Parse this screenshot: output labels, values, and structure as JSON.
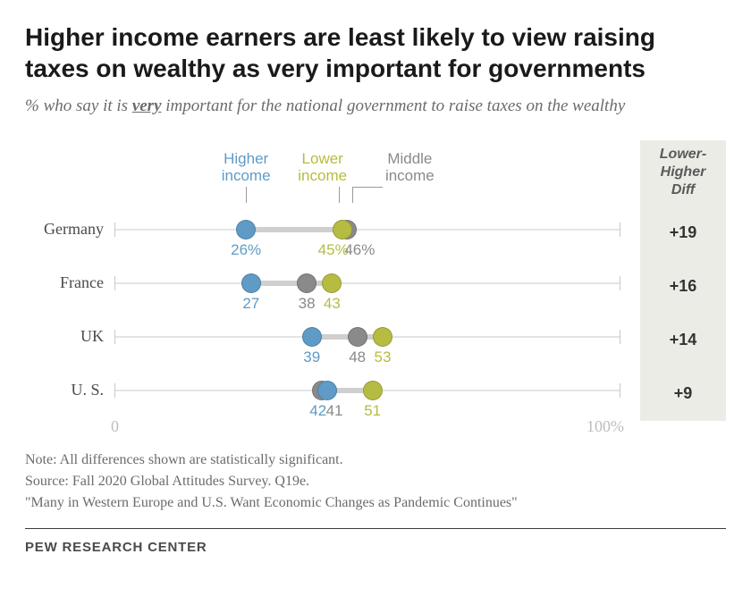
{
  "title": "Higher income earners are least likely to view raising taxes on wealthy as very important for governments",
  "subtitle_pre": "% who say it is ",
  "subtitle_em": "very",
  "subtitle_post": " important for the national government to raise taxes on the wealthy",
  "legend": {
    "higher": {
      "label": "Higher\nincome",
      "color": "#5f9bc6"
    },
    "lower": {
      "label": "Lower\nincome",
      "color": "#b6bc42"
    },
    "middle": {
      "label": "Middle\nincome",
      "color": "#8a8a8a"
    }
  },
  "diff_header": "Lower-\nHigher\nDiff",
  "chart": {
    "type": "dot-range",
    "xlim": [
      0,
      100
    ],
    "axis_color": "#c9c9c9",
    "connector_color": "#cfcfcf",
    "dot_size": 22,
    "value_fontsize": 17,
    "label_fontsize": 18,
    "countries": [
      {
        "name": "Germany",
        "higher": 26,
        "lower": 45,
        "middle": 46,
        "diff": "+19",
        "show_percent": true,
        "legend_anchor": true
      },
      {
        "name": "France",
        "higher": 27,
        "lower": 43,
        "middle": 38,
        "diff": "+16",
        "show_percent": false
      },
      {
        "name": "UK",
        "higher": 39,
        "lower": 53,
        "middle": 48,
        "diff": "+14",
        "show_percent": false
      },
      {
        "name": "U. S.",
        "higher": 42,
        "lower": 51,
        "middle": 41,
        "diff": "+9",
        "show_percent": false
      }
    ],
    "scale_labels": {
      "left": "0",
      "right": "100%"
    }
  },
  "colors": {
    "bg": "#ffffff",
    "text": "#333333",
    "muted": "#6b6b6b",
    "diff_bg": "#ecece7",
    "higher": "#5f9bc6",
    "lower": "#b6bc42",
    "middle": "#8a8a8a"
  },
  "notes": {
    "line1": "Note: All differences shown are statistically significant.",
    "line2": "Source: Fall 2020 Global Attitudes Survey. Q19e.",
    "line3": "\"Many in Western Europe and U.S. Want Economic Changes as Pandemic Continues\""
  },
  "brand": "PEW RESEARCH CENTER"
}
